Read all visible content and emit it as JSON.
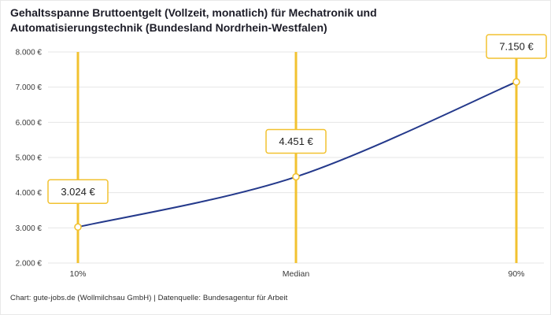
{
  "title": "Gehaltsspanne Bruttoentgelt (Vollzeit, monatlich) für Mechatronik und Automatisierungstechnik (Bundesland Nordrhein-Westfalen)",
  "footer": "Chart: gute-jobs.de (Wollmilchsau GmbH) | Datenquelle: Bundesagentur für Arbeit",
  "chart_data": {
    "type": "line",
    "categories": [
      "10%",
      "Median",
      "90%"
    ],
    "values": [
      3024,
      4451,
      7150
    ],
    "value_labels": [
      "3.024 €",
      "4.451 €",
      "7.150 €"
    ],
    "ylim": [
      2000,
      8000
    ],
    "y_ticks": [
      8000,
      7000,
      6000,
      5000,
      4000,
      3000,
      2000
    ],
    "y_tick_labels": [
      "8.000 €",
      "7.000 €",
      "6.000 €",
      "5.000 €",
      "4.000 €",
      "3.000 €",
      "2.000 €"
    ],
    "grid": true,
    "legend": "none",
    "colors": {
      "accent": "#F2C230",
      "line": "#24398B",
      "grid": "#E6E6E6",
      "axis_text": "#3a3a3a",
      "label_text": "#222222",
      "title_text": "#1d1d28"
    }
  }
}
